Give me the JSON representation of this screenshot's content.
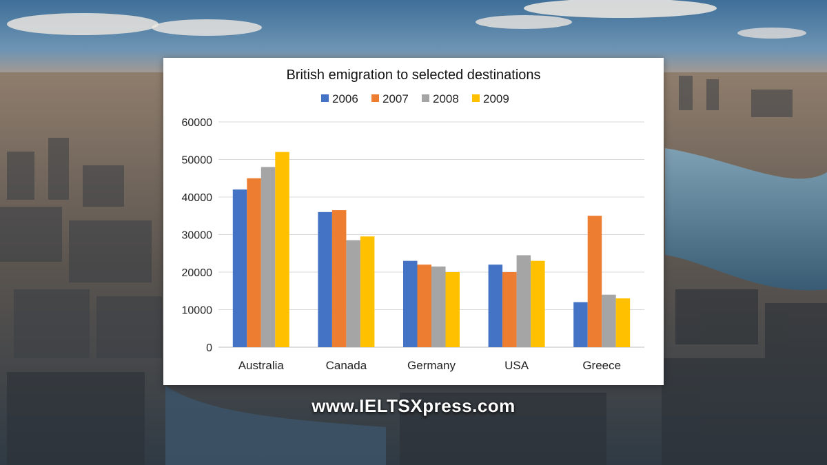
{
  "watermark": "www.IELTSXpress.com",
  "chart_data": {
    "type": "bar",
    "title": "British emigration to selected destinations",
    "categories": [
      "Australia",
      "Canada",
      "Germany",
      "USA",
      "Greece"
    ],
    "series": [
      {
        "name": "2006",
        "color": "#4472C4",
        "values": [
          42000,
          36000,
          23000,
          22000,
          12000
        ]
      },
      {
        "name": "2007",
        "color": "#ED7D31",
        "values": [
          45000,
          36500,
          22000,
          20000,
          35000
        ]
      },
      {
        "name": "2008",
        "color": "#A5A5A5",
        "values": [
          48000,
          28500,
          21500,
          24500,
          14000
        ]
      },
      {
        "name": "2009",
        "color": "#FFC000",
        "values": [
          52000,
          29500,
          20000,
          23000,
          13000
        ]
      }
    ],
    "xlabel": "",
    "ylabel": "",
    "ylim": [
      0,
      60000
    ],
    "yticks": [
      0,
      10000,
      20000,
      30000,
      40000,
      50000,
      60000
    ],
    "grid": true,
    "legend_position": "top"
  }
}
